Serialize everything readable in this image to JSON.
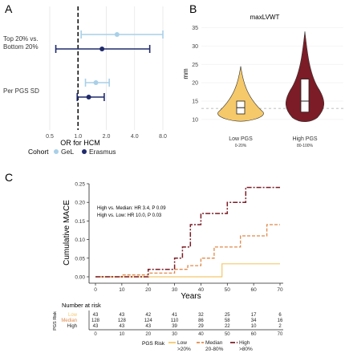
{
  "panel_labels": {
    "a": "A",
    "b": "B",
    "c": "C"
  },
  "colors": {
    "gel": "#a9d0e8",
    "erasmus": "#1f2a6b",
    "low": "#f5c86a",
    "high": "#7b1c26",
    "median": "#e0894a"
  },
  "chart_data": [
    {
      "type": "scatter",
      "subtype": "forest-plot",
      "categories": [
        "Top 20% vs. Bottom 20%",
        "Per PGS SD"
      ],
      "series": [
        {
          "name": "GeL",
          "or": [
            2.6,
            1.55
          ],
          "ci_low": [
            1.08,
            1.2
          ],
          "ci_high": [
            8.0,
            2.15
          ]
        },
        {
          "name": "Erasmus",
          "or": [
            1.8,
            1.3
          ],
          "ci_low": [
            0.58,
            0.98
          ],
          "ci_high": [
            5.8,
            1.9
          ]
        }
      ],
      "xlabel": "OR for HCM",
      "xscale": "log2",
      "xticks": [
        "0.5",
        "1.0",
        "2.0",
        "4.0",
        "8.0"
      ],
      "xlim": [
        0.5,
        8.0
      ],
      "reference_line": 1.0,
      "legend_title": "Cohort",
      "legend_position": "bottom"
    },
    {
      "type": "violin",
      "title": "maxLVWT",
      "ylabel": "mm",
      "yticks": [
        10,
        15,
        20,
        25,
        30,
        35
      ],
      "ylim": [
        8,
        36
      ],
      "reference_line": 13,
      "groups": [
        {
          "label": "Low PGS",
          "sublabel": "0-20%",
          "min": 9.5,
          "q1": 11.5,
          "median": 13.2,
          "q3": 15.0,
          "max": 24.5
        },
        {
          "label": "High PGS",
          "sublabel": "80-100%",
          "min": 9.0,
          "q1": 12.0,
          "median": 15.0,
          "q3": 21.0,
          "max": 34.0
        }
      ]
    },
    {
      "type": "line",
      "subtype": "kaplan-meier-cumulative",
      "ylabel": "Cumulative MACE",
      "xlabel": "Years",
      "xticks": [
        0,
        10,
        20,
        30,
        40,
        50,
        60,
        70
      ],
      "yticks": [
        "0.00",
        "0.05",
        "0.10",
        "0.15",
        "0.20",
        "0.25"
      ],
      "xlim": [
        0,
        70
      ],
      "ylim": [
        0,
        0.25
      ],
      "annotations": [
        "High vs. Median: HR 3.4, P 0.09",
        "High vs. Low: HR 10.0, P 0.03"
      ],
      "series": [
        {
          "name": "Low",
          "steps": [
            [
              0,
              0
            ],
            [
              48,
              0
            ],
            [
              48,
              0.035
            ],
            [
              70,
              0.035
            ]
          ]
        },
        {
          "name": "Median",
          "steps": [
            [
              0,
              0
            ],
            [
              10,
              0
            ],
            [
              10,
              0.005
            ],
            [
              20,
              0.005
            ],
            [
              20,
              0.01
            ],
            [
              30,
              0.01
            ],
            [
              30,
              0.02
            ],
            [
              35,
              0.02
            ],
            [
              35,
              0.03
            ],
            [
              40,
              0.03
            ],
            [
              40,
              0.05
            ],
            [
              45,
              0.05
            ],
            [
              45,
              0.08
            ],
            [
              55,
              0.08
            ],
            [
              55,
              0.11
            ],
            [
              65,
              0.11
            ],
            [
              65,
              0.14
            ],
            [
              70,
              0.14
            ]
          ]
        },
        {
          "name": "High",
          "steps": [
            [
              0,
              0
            ],
            [
              20,
              0
            ],
            [
              20,
              0.02
            ],
            [
              30,
              0.02
            ],
            [
              30,
              0.05
            ],
            [
              33,
              0.05
            ],
            [
              33,
              0.08
            ],
            [
              36,
              0.08
            ],
            [
              36,
              0.14
            ],
            [
              40,
              0.14
            ],
            [
              40,
              0.17
            ],
            [
              50,
              0.17
            ],
            [
              50,
              0.2
            ],
            [
              57,
              0.2
            ],
            [
              57,
              0.24
            ],
            [
              70,
              0.24
            ]
          ]
        }
      ],
      "risk_table": {
        "title": "Number at risk",
        "axis_label": "PGS Risk",
        "times": [
          0,
          10,
          20,
          30,
          40,
          50,
          60,
          70
        ],
        "rows": [
          {
            "name": "Low",
            "values": [
              43,
              43,
              42,
              41,
              32,
              25,
              17,
              6
            ]
          },
          {
            "name": "Median",
            "values": [
              128,
              128,
              124,
              110,
              86,
              58,
              34,
              16
            ]
          },
          {
            "name": "High",
            "values": [
              43,
              43,
              43,
              39,
              29,
              22,
              10,
              2
            ]
          }
        ]
      },
      "legend_title": "PGS Risk",
      "legend": [
        {
          "name": "Low",
          "sub": ">20%"
        },
        {
          "name": "Median",
          "sub": "20-80%"
        },
        {
          "name": "High",
          "sub": ">80%"
        }
      ]
    }
  ]
}
